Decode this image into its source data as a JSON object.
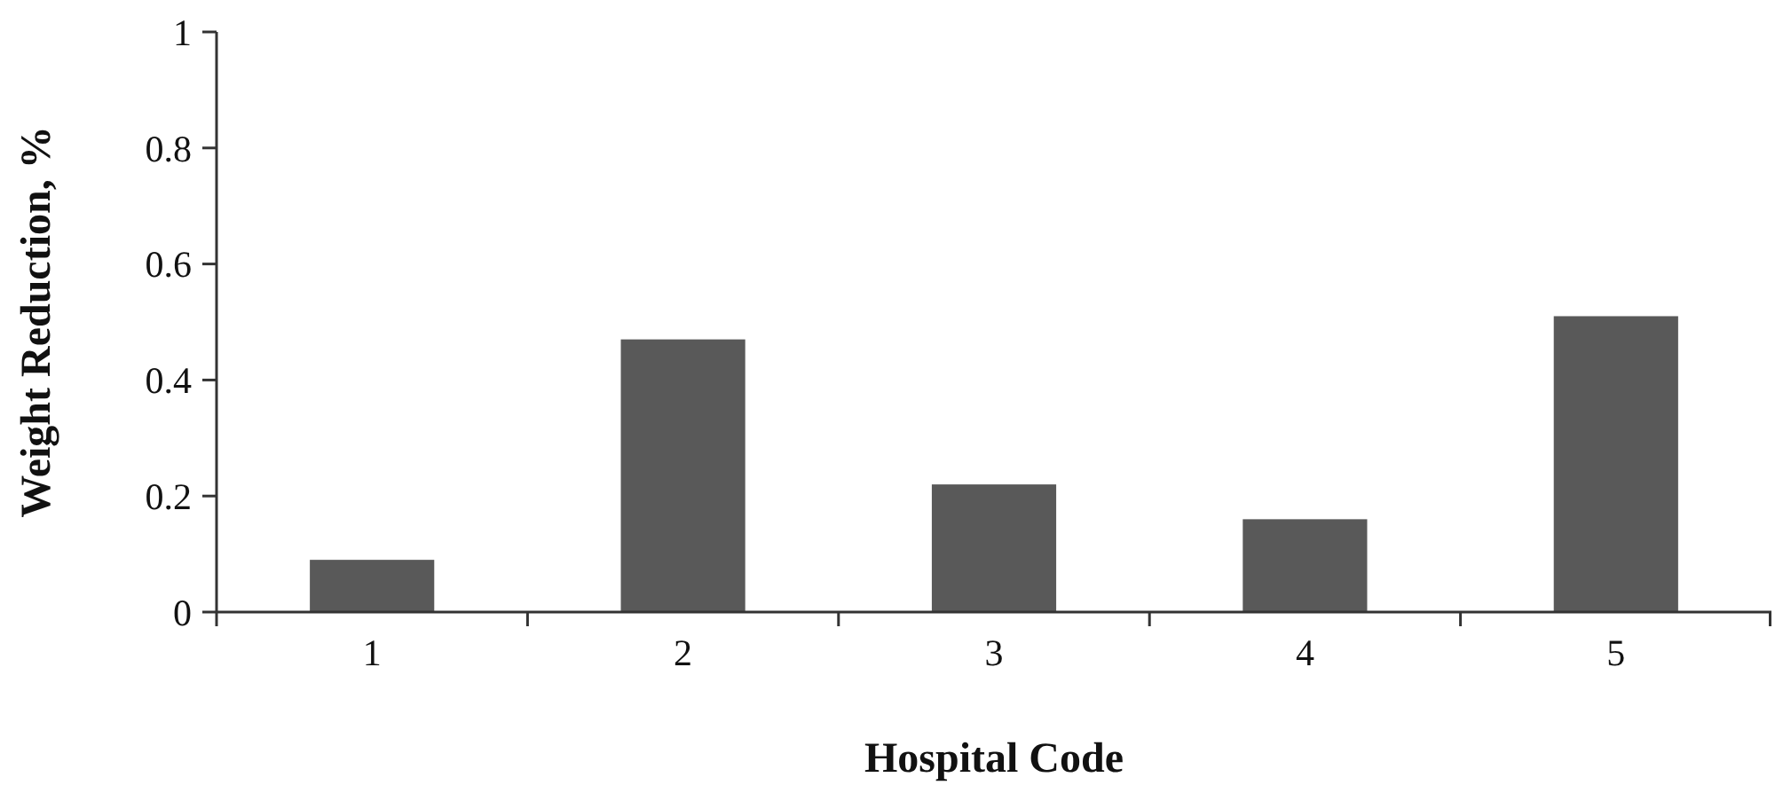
{
  "chart_data": {
    "type": "bar",
    "xlabel": "Hospital Code",
    "ylabel": "Weight Reduction, %",
    "categories": [
      "1",
      "2",
      "3",
      "4",
      "5"
    ],
    "values": [
      0.09,
      0.47,
      0.22,
      0.16,
      0.51
    ],
    "color": "#595959",
    "ylim": [
      0,
      1
    ],
    "yticks": [
      0,
      {
        "value": 0.2,
        "label": "0.2"
      },
      {
        "value": 0.4,
        "label": "0.4"
      },
      {
        "value": 0.6,
        "label": "0.6"
      },
      {
        "value": 0.8,
        "label": "0.8"
      },
      1
    ],
    "grid": false
  }
}
